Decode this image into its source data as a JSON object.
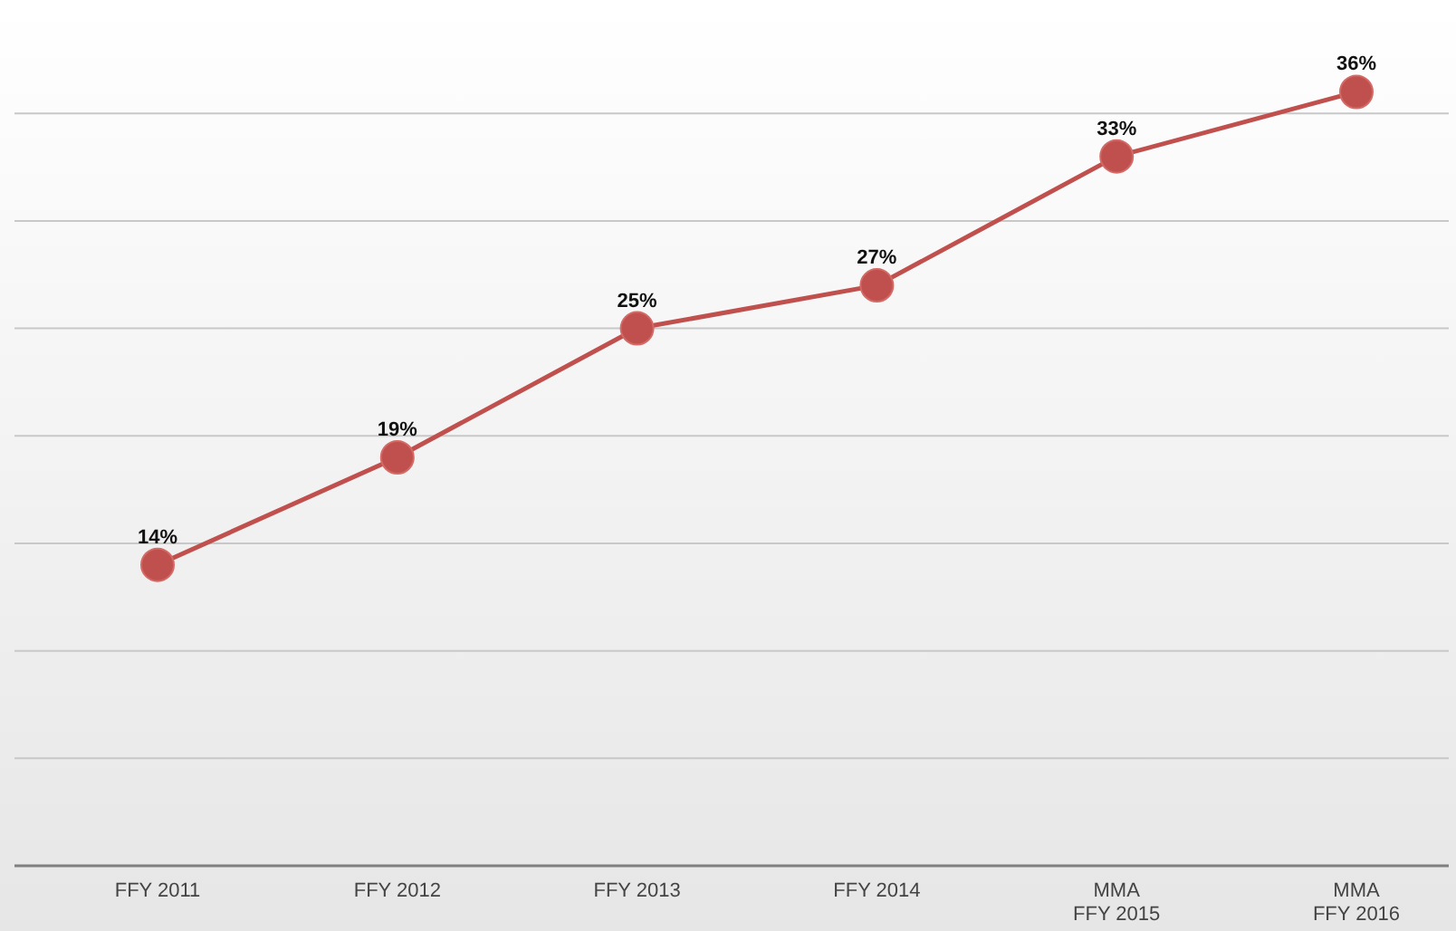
{
  "chart_data": {
    "type": "line",
    "categories": [
      "FFY 2011",
      "FFY 2012",
      "FFY 2013",
      "FFY 2014",
      "MMA FFY 2015",
      "MMA FFY 2016"
    ],
    "series": [
      {
        "color": "#c0504d",
        "values": [
          14,
          19,
          25,
          27,
          33,
          36
        ],
        "value_labels": [
          "14%",
          "19%",
          "25%",
          "27%",
          "33%",
          "36%"
        ]
      }
    ],
    "tick_labels": "x",
    "grid": "y",
    "marker": "circle"
  }
}
